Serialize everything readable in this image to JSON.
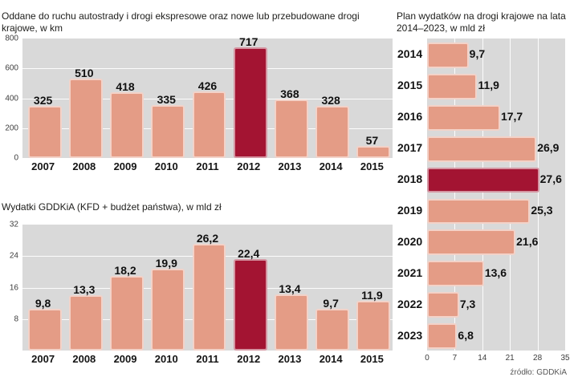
{
  "source": "źródło: GDDKiA",
  "colors": {
    "bar": "#e49c86",
    "bar_highlight": "#a31432",
    "panel_bg": "#d9d9d9",
    "grid": "#ffffff"
  },
  "chart_data": [
    {
      "type": "bar",
      "title": "Oddane do ruchu autostrady i drogi ekspresowe oraz nowe lub przebudowane drogi krajowe, w km",
      "categories": [
        "2007",
        "2008",
        "2009",
        "2010",
        "2011",
        "2012",
        "2013",
        "2014",
        "2015"
      ],
      "values": [
        325,
        510,
        418,
        335,
        426,
        717,
        368,
        328,
        57
      ],
      "value_labels": [
        "325",
        "510",
        "418",
        "335",
        "426",
        "717",
        "368",
        "328",
        "57"
      ],
      "highlight_index": 5,
      "xlabel": "",
      "ylabel": "km",
      "ylim": [
        0,
        800
      ],
      "yticks": [
        0,
        200,
        400,
        600,
        800
      ],
      "grid": true,
      "legend": "none"
    },
    {
      "type": "bar",
      "title": "Wydatki GDDKiA (KFD + budżet państwa), w mld zł",
      "categories": [
        "2007",
        "2008",
        "2009",
        "2010",
        "2011",
        "2012",
        "2013",
        "2014",
        "2015"
      ],
      "values": [
        9.8,
        13.3,
        18.2,
        19.9,
        26.2,
        22.4,
        13.4,
        9.7,
        11.9
      ],
      "value_labels": [
        "9,8",
        "13,3",
        "18,2",
        "19,9",
        "26,2",
        "22,4",
        "13,4",
        "9,7",
        "11,9"
      ],
      "highlight_index": 5,
      "xlabel": "",
      "ylabel": "mld zł",
      "ylim": [
        0,
        32
      ],
      "yticks": [
        8,
        16,
        24,
        32
      ],
      "grid": true,
      "legend": "none"
    },
    {
      "type": "bar-horizontal",
      "title": "Plan wydatków na drogi krajowe na lata 2014–2023, w mld zł",
      "categories": [
        "2014",
        "2015",
        "2016",
        "2017",
        "2018",
        "2019",
        "2020",
        "2021",
        "2022",
        "2023"
      ],
      "values": [
        9.7,
        11.9,
        17.7,
        26.9,
        27.6,
        25.3,
        21.6,
        13.6,
        7.3,
        6.8
      ],
      "value_labels": [
        "9,7",
        "11,9",
        "17,7",
        "26,9",
        "27,6",
        "25,3",
        "21,6",
        "13,6",
        "7,3",
        "6,8"
      ],
      "highlight_index": 4,
      "xlabel": "mld zł",
      "ylabel": "",
      "xlim": [
        0,
        35
      ],
      "xticks": [
        0,
        7,
        14,
        21,
        28,
        35
      ],
      "grid": true,
      "legend": "none"
    }
  ]
}
